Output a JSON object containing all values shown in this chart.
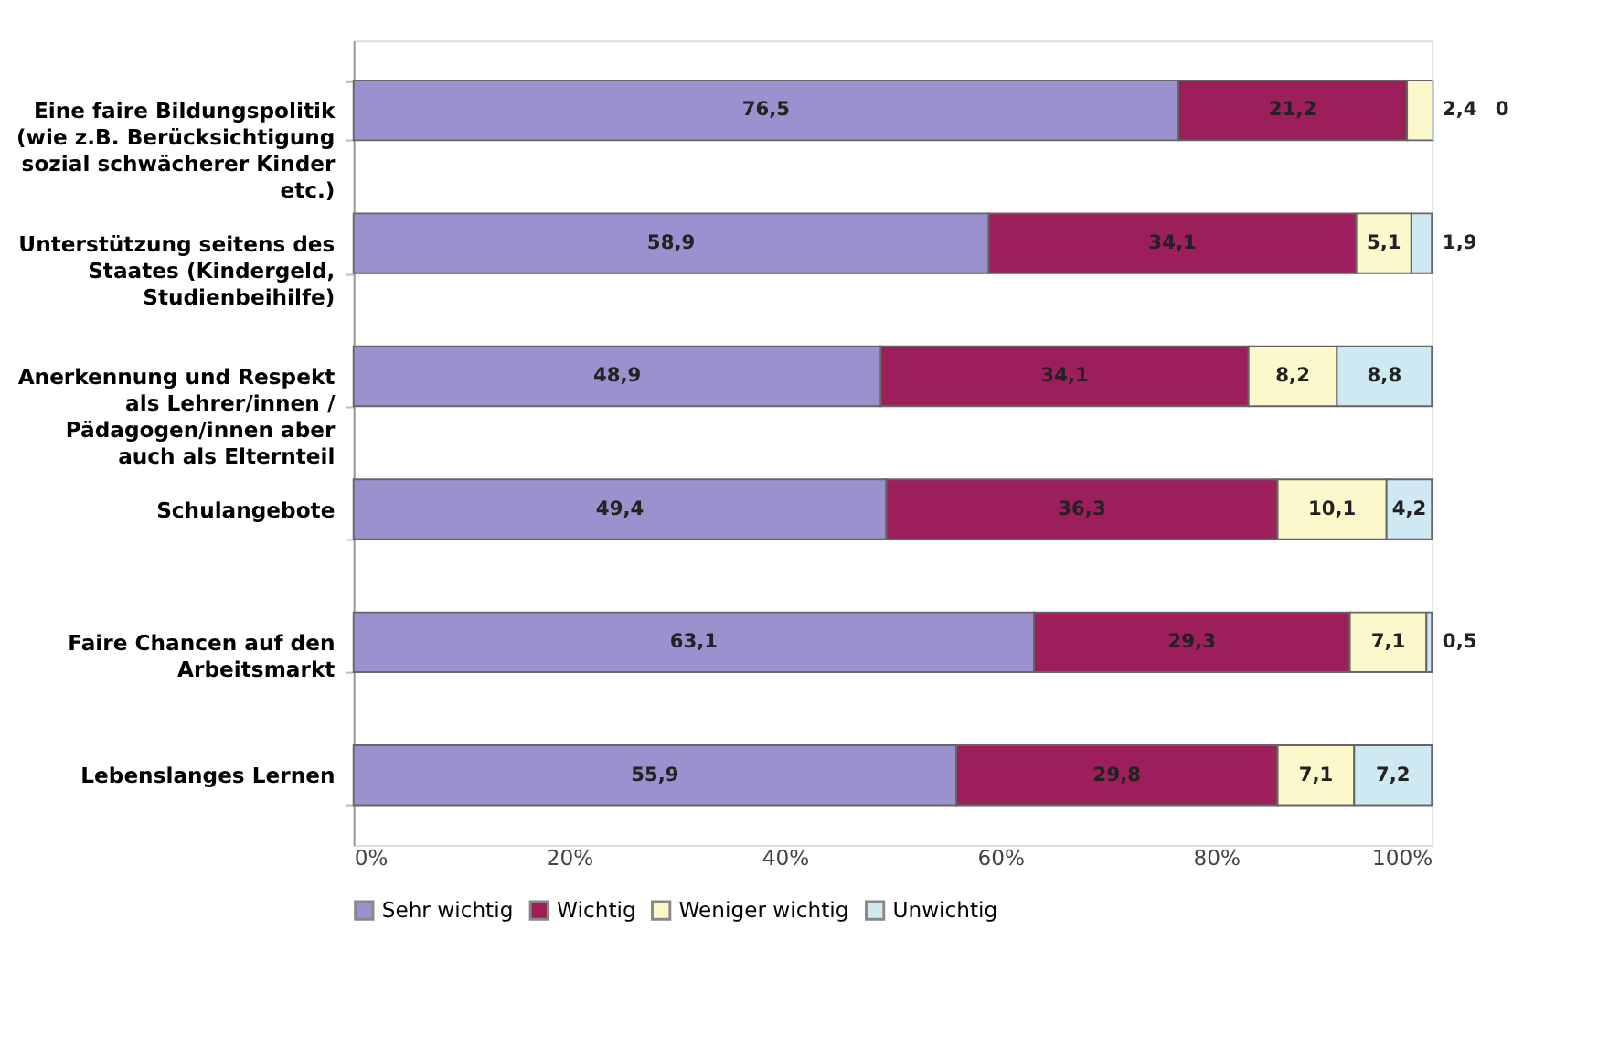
{
  "chart_data": {
    "type": "bar",
    "orientation": "horizontal",
    "stacked": true,
    "categories": [
      "Eine faire Bildungspolitik\n(wie z.B. Berücksichtigung\nsozial schwächerer Kinder\netc.)",
      "Unterstützung seitens des\nStaates (Kindergeld,\nStudienbeihilfe)",
      "Anerkennung und Respekt\nals Lehrer/innen /\nPädagogen/innen aber\nauch als Elternteil",
      "Schulangebote",
      "Faire Chancen auf den\nArbeitsmarkt",
      "Lebenslanges Lernen"
    ],
    "series": [
      {
        "name": "Sehr wichtig",
        "color": "#9b91cf",
        "values": [
          76.5,
          58.9,
          48.9,
          49.4,
          63.1,
          55.9
        ],
        "value_labels": [
          "76,5",
          "58,9",
          "48,9",
          "49,4",
          "63,1",
          "55,9"
        ]
      },
      {
        "name": "Wichtig",
        "color": "#9c1f5c",
        "values": [
          21.2,
          34.1,
          34.1,
          36.3,
          29.3,
          29.8
        ],
        "value_labels": [
          "21,2",
          "34,1",
          "34,1",
          "36,3",
          "29,3",
          "29,8"
        ]
      },
      {
        "name": "Weniger wichtig",
        "color": "#fbf8cc",
        "values": [
          2.4,
          5.1,
          8.2,
          10.1,
          7.1,
          7.1
        ],
        "value_labels": [
          "2,4",
          "5,1",
          "8,2",
          "10,1",
          "7,1",
          "7,1"
        ]
      },
      {
        "name": "Unwichtig",
        "color": "#cfe9f2",
        "values": [
          0,
          1.9,
          8.8,
          4.2,
          0.5,
          7.2
        ],
        "value_labels": [
          "0",
          "1,9",
          "8,8",
          "4,2",
          "0,5",
          "7,2"
        ]
      }
    ],
    "xlim": [
      0,
      100
    ],
    "xticks": [
      {
        "value": 0,
        "label": "0%"
      },
      {
        "value": 20,
        "label": "20%"
      },
      {
        "value": 40,
        "label": "40%"
      },
      {
        "value": 60,
        "label": "60%"
      },
      {
        "value": 80,
        "label": "80%"
      },
      {
        "value": 100,
        "label": "100%"
      }
    ],
    "grid": false,
    "legend": "bottom"
  }
}
